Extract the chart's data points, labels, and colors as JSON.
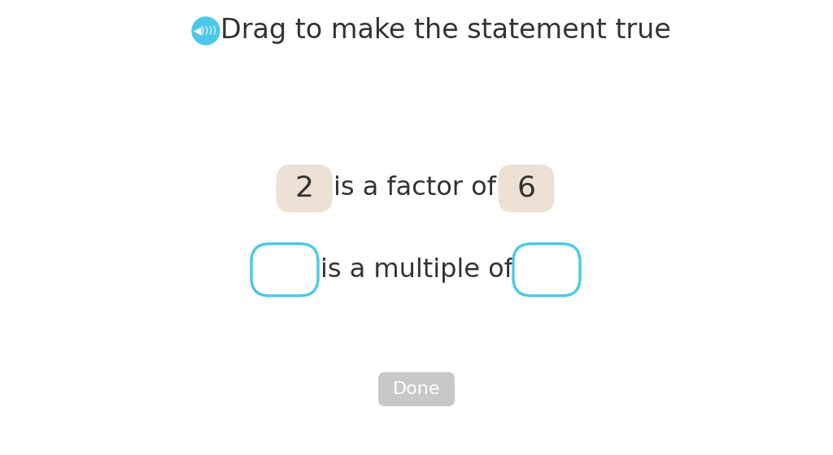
{
  "title": "Drag to make the statement true",
  "bg_color": "#ffffff",
  "title_color": "#333333",
  "title_fontsize": 24,
  "speaker_icon_color": "#4ec8e8",
  "row1_text": "is a factor of",
  "row2_text": "is a multiple of",
  "row_text_color": "#333333",
  "row_text_fontsize": 23,
  "num1_val": "2",
  "num2_val": "6",
  "filled_box_color": "#ede0d4",
  "empty_box_edge": "#4ec8e8",
  "empty_box_fill": "#ffffff",
  "done_btn_color": "#c8c8c8",
  "done_btn_text": "Done",
  "done_btn_text_color": "#ffffff"
}
